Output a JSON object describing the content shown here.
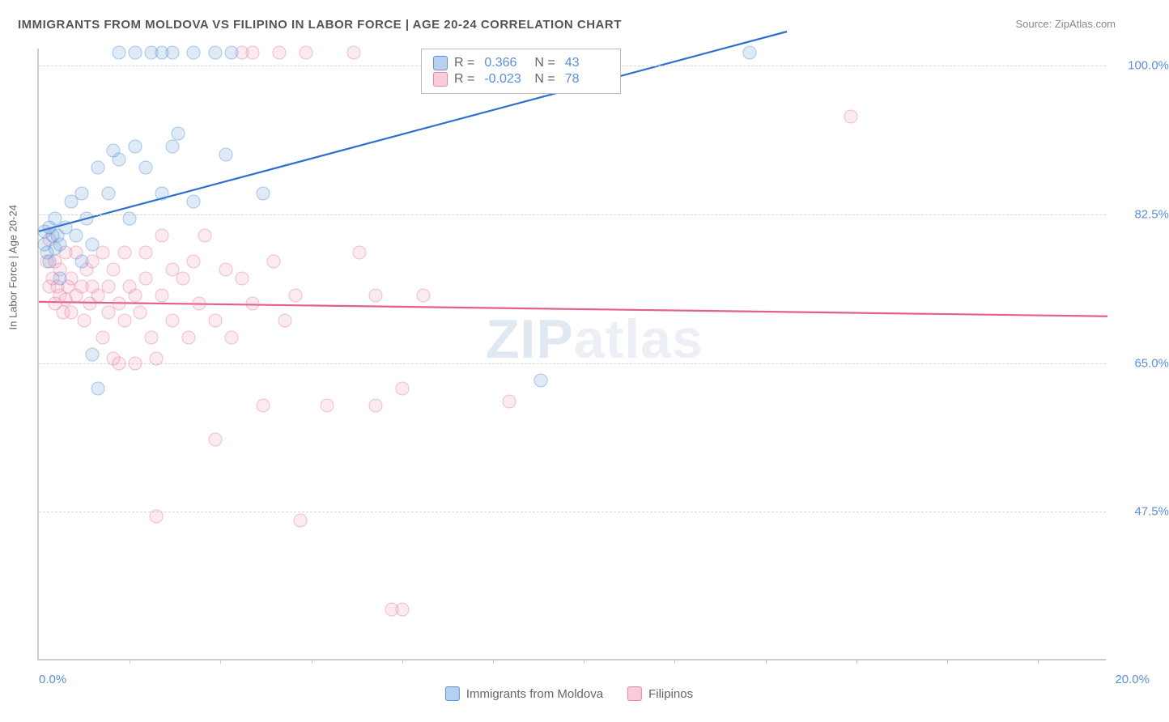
{
  "title": "IMMIGRANTS FROM MOLDOVA VS FILIPINO IN LABOR FORCE | AGE 20-24 CORRELATION CHART",
  "source": "Source: ZipAtlas.com",
  "ylabel": "In Labor Force | Age 20-24",
  "watermark_a": "ZIP",
  "watermark_b": "atlas",
  "chart": {
    "type": "scatter-correlation",
    "xlim": [
      0,
      20
    ],
    "ylim": [
      30,
      102
    ],
    "x_ticks_labeled": {
      "0": "0.0%",
      "20": "20.0%"
    },
    "x_tick_positions": [
      1.7,
      3.4,
      5.1,
      6.8,
      8.5,
      10.2,
      11.9,
      13.6,
      15.3,
      17.0,
      18.7
    ],
    "y_ticks": {
      "47.5": "47.5%",
      "65": "65.0%",
      "82.5": "82.5%",
      "100": "100.0%"
    },
    "background_color": "#ffffff",
    "grid_color": "#d5d5d5",
    "series": {
      "moldova": {
        "label": "Immigrants from Moldova",
        "color_fill": "rgba(93,150,214,0.35)",
        "color_stroke": "#5d96d6",
        "R": "0.366",
        "N": "43",
        "trend": {
          "x1": 0,
          "y1": 80.5,
          "x2": 14,
          "y2": 104,
          "color": "#2f6fd0"
        },
        "points": [
          [
            0.1,
            79
          ],
          [
            0.1,
            80.5
          ],
          [
            0.15,
            78
          ],
          [
            0.2,
            81
          ],
          [
            0.2,
            77
          ],
          [
            0.25,
            80
          ],
          [
            0.3,
            78.5
          ],
          [
            0.3,
            82
          ],
          [
            0.35,
            80
          ],
          [
            0.4,
            79
          ],
          [
            0.4,
            75
          ],
          [
            0.5,
            81
          ],
          [
            0.6,
            84
          ],
          [
            0.7,
            80
          ],
          [
            0.8,
            85
          ],
          [
            0.8,
            77
          ],
          [
            0.9,
            82
          ],
          [
            1.0,
            79
          ],
          [
            1.0,
            66
          ],
          [
            1.1,
            88
          ],
          [
            1.1,
            62
          ],
          [
            1.3,
            85
          ],
          [
            1.4,
            90
          ],
          [
            1.5,
            89
          ],
          [
            1.7,
            82
          ],
          [
            1.8,
            90.5
          ],
          [
            2.0,
            88
          ],
          [
            2.3,
            85
          ],
          [
            2.5,
            90.5
          ],
          [
            2.6,
            92
          ],
          [
            2.9,
            84
          ],
          [
            3.5,
            89.5
          ],
          [
            4.2,
            85
          ],
          [
            9.4,
            63
          ],
          [
            1.5,
            101.5
          ],
          [
            1.8,
            101.5
          ],
          [
            2.1,
            101.5
          ],
          [
            2.3,
            101.5
          ],
          [
            2.5,
            101.5
          ],
          [
            2.9,
            101.5
          ],
          [
            3.3,
            101.5
          ],
          [
            3.6,
            101.5
          ],
          [
            13.3,
            101.5
          ]
        ]
      },
      "filipinos": {
        "label": "Filipinos",
        "color_fill": "rgba(235,130,160,0.28)",
        "color_stroke": "#e984a4",
        "R": "-0.023",
        "N": "78",
        "trend": {
          "x1": 0,
          "y1": 72.2,
          "x2": 20,
          "y2": 70.5,
          "color": "#e35f8d"
        },
        "points": [
          [
            0.15,
            77
          ],
          [
            0.2,
            74
          ],
          [
            0.2,
            79.5
          ],
          [
            0.25,
            75
          ],
          [
            0.3,
            72
          ],
          [
            0.3,
            77
          ],
          [
            0.35,
            74
          ],
          [
            0.4,
            76
          ],
          [
            0.4,
            73
          ],
          [
            0.45,
            71
          ],
          [
            0.5,
            78
          ],
          [
            0.5,
            72.5
          ],
          [
            0.55,
            74
          ],
          [
            0.6,
            75
          ],
          [
            0.6,
            71
          ],
          [
            0.7,
            73
          ],
          [
            0.7,
            78
          ],
          [
            0.8,
            74
          ],
          [
            0.85,
            70
          ],
          [
            0.9,
            76
          ],
          [
            0.95,
            72
          ],
          [
            1.0,
            74
          ],
          [
            1.0,
            77
          ],
          [
            1.1,
            73
          ],
          [
            1.2,
            68
          ],
          [
            1.2,
            78
          ],
          [
            1.3,
            71
          ],
          [
            1.3,
            74
          ],
          [
            1.4,
            65.5
          ],
          [
            1.4,
            76
          ],
          [
            1.5,
            72
          ],
          [
            1.5,
            65
          ],
          [
            1.6,
            78
          ],
          [
            1.6,
            70
          ],
          [
            1.7,
            74
          ],
          [
            1.8,
            65
          ],
          [
            1.8,
            73
          ],
          [
            1.9,
            71
          ],
          [
            2.0,
            78
          ],
          [
            2.0,
            75
          ],
          [
            2.1,
            68
          ],
          [
            2.2,
            65.5
          ],
          [
            2.3,
            80
          ],
          [
            2.3,
            73
          ],
          [
            2.5,
            76
          ],
          [
            2.5,
            70
          ],
          [
            2.7,
            75
          ],
          [
            2.8,
            68
          ],
          [
            2.9,
            77
          ],
          [
            3.0,
            72
          ],
          [
            3.1,
            80
          ],
          [
            3.3,
            70
          ],
          [
            3.5,
            76
          ],
          [
            3.6,
            68
          ],
          [
            3.8,
            75
          ],
          [
            4.0,
            72
          ],
          [
            4.2,
            60
          ],
          [
            4.4,
            77
          ],
          [
            4.6,
            70
          ],
          [
            4.8,
            73
          ],
          [
            5.0,
            101.5
          ],
          [
            5.4,
            60
          ],
          [
            5.9,
            101.5
          ],
          [
            6.0,
            78
          ],
          [
            6.3,
            73
          ],
          [
            6.3,
            60
          ],
          [
            6.8,
            62
          ],
          [
            7.2,
            73
          ],
          [
            2.2,
            47
          ],
          [
            3.3,
            56
          ],
          [
            4.9,
            46.5
          ],
          [
            6.6,
            36
          ],
          [
            6.8,
            36
          ],
          [
            8.8,
            60.5
          ],
          [
            15.2,
            94
          ],
          [
            3.8,
            101.5
          ],
          [
            4.0,
            101.5
          ],
          [
            4.5,
            101.5
          ]
        ]
      }
    }
  },
  "legend_top": {
    "label_R": "R =",
    "label_N": "N ="
  }
}
